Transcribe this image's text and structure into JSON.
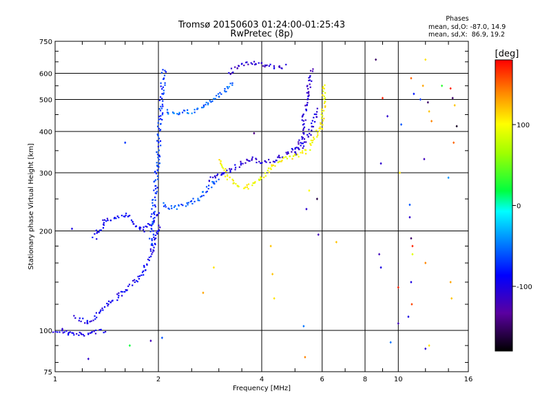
{
  "chart_data": {
    "type": "scatter",
    "title": "Tromsø 20150603 01:24:00-01:25:43",
    "subtitle": "RwPretec (8p)",
    "stats": {
      "heading": "Phases",
      "line1": "mean, sd,O: -87.0, 14.9",
      "line2": "mean, sd,X:  86.9, 19.2"
    },
    "xlabel": "Frequency [MHz]",
    "ylabel": "Stationary phase Virtual Height [km]",
    "x_scale": "log",
    "y_scale": "log",
    "xlim": [
      1,
      16
    ],
    "ylim": [
      75,
      750
    ],
    "x_ticks": [
      1,
      2,
      4,
      6,
      8,
      10,
      16
    ],
    "x_tick_labels": [
      "1",
      "2",
      "4",
      "6",
      "8",
      "10",
      "16"
    ],
    "y_ticks": [
      75,
      100,
      200,
      300,
      400,
      500,
      600,
      750
    ],
    "y_tick_labels": [
      "75",
      "100",
      "200",
      "300",
      "400",
      "500",
      "600",
      "750"
    ],
    "grid": true,
    "colorbar": {
      "label": "[deg]",
      "range": [
        -180,
        180
      ],
      "ticks": [
        100,
        0,
        -100
      ],
      "tick_labels": [
        "100",
        "0",
        "-100"
      ]
    },
    "traces": [
      {
        "x": [
          1.0,
          1.1,
          1.2,
          1.3,
          1.4
        ],
        "y": [
          100,
          98,
          97,
          99,
          100
        ],
        "phase": -100
      },
      {
        "x": [
          1.15,
          1.25,
          1.35,
          1.5,
          1.65,
          1.8,
          1.9,
          2.0
        ],
        "y": [
          110,
          105,
          115,
          125,
          135,
          150,
          170,
          210
        ],
        "phase": -95
      },
      {
        "x": [
          1.3,
          1.4,
          1.5,
          1.6,
          1.7,
          1.8,
          1.9,
          2.0
        ],
        "y": [
          190,
          215,
          220,
          225,
          210,
          200,
          210,
          230
        ],
        "phase": -90
      },
      {
        "x": [
          1.9,
          1.95,
          2.0,
          2.02,
          2.05,
          2.08
        ],
        "y": [
          180,
          260,
          340,
          420,
          520,
          620
        ],
        "phase": -70
      },
      {
        "x": [
          2.05,
          2.2,
          2.4,
          2.6,
          2.8,
          3.0
        ],
        "y": [
          240,
          235,
          240,
          250,
          270,
          290
        ],
        "phase": -60
      },
      {
        "x": [
          2.1,
          2.3,
          2.5,
          2.7,
          2.9,
          3.1,
          3.3
        ],
        "y": [
          460,
          455,
          460,
          475,
          500,
          530,
          570
        ],
        "phase": -55
      },
      {
        "x": [
          3.2,
          3.5,
          3.8,
          4.1,
          4.4,
          4.7
        ],
        "y": [
          600,
          640,
          645,
          635,
          625,
          630
        ],
        "phase": -110
      },
      {
        "x": [
          2.8,
          3.0,
          3.2,
          3.4,
          3.6,
          3.8,
          4.0,
          4.4,
          4.8,
          5.2,
          5.5,
          5.8
        ],
        "y": [
          285,
          295,
          305,
          315,
          325,
          330,
          320,
          330,
          345,
          360,
          390,
          470
        ],
        "phase": -105
      },
      {
        "x": [
          5.0,
          5.2,
          5.3,
          5.4,
          5.5,
          5.6
        ],
        "y": [
          340,
          380,
          430,
          500,
          560,
          620
        ],
        "phase": -110
      },
      {
        "x": [
          3.0,
          3.2,
          3.4,
          3.6,
          3.8,
          4.0,
          4.3,
          4.6,
          5.0,
          5.4,
          5.7,
          6.0,
          6.1
        ],
        "y": [
          330,
          290,
          275,
          270,
          280,
          290,
          315,
          330,
          335,
          350,
          380,
          420,
          560
        ],
        "phase": 100
      }
    ],
    "scattered_points": [
      {
        "x": 1.05,
        "y": 101,
        "phase": -110
      },
      {
        "x": 1.25,
        "y": 82,
        "phase": -110
      },
      {
        "x": 1.12,
        "y": 203,
        "phase": -100
      },
      {
        "x": 1.6,
        "y": 370,
        "phase": -70
      },
      {
        "x": 1.65,
        "y": 90,
        "phase": 20
      },
      {
        "x": 1.9,
        "y": 93,
        "phase": -120
      },
      {
        "x": 2.05,
        "y": 95,
        "phase": -60
      },
      {
        "x": 2.7,
        "y": 130,
        "phase": 130
      },
      {
        "x": 2.9,
        "y": 155,
        "phase": 110
      },
      {
        "x": 3.8,
        "y": 395,
        "phase": -140
      },
      {
        "x": 4.25,
        "y": 180,
        "phase": 120
      },
      {
        "x": 4.3,
        "y": 148,
        "phase": 120
      },
      {
        "x": 4.35,
        "y": 125,
        "phase": 110
      },
      {
        "x": 5.3,
        "y": 103,
        "phase": -50
      },
      {
        "x": 5.35,
        "y": 83,
        "phase": 140
      },
      {
        "x": 5.4,
        "y": 233,
        "phase": -110
      },
      {
        "x": 5.5,
        "y": 265,
        "phase": 100
      },
      {
        "x": 5.8,
        "y": 250,
        "phase": -160
      },
      {
        "x": 5.85,
        "y": 195,
        "phase": -120
      },
      {
        "x": 6.6,
        "y": 185,
        "phase": 120
      },
      {
        "x": 8.6,
        "y": 660,
        "phase": -150
      },
      {
        "x": 8.8,
        "y": 170,
        "phase": -120
      },
      {
        "x": 8.9,
        "y": 155,
        "phase": -100
      },
      {
        "x": 8.9,
        "y": 320,
        "phase": -110
      },
      {
        "x": 9.0,
        "y": 505,
        "phase": 170
      },
      {
        "x": 9.5,
        "y": 92,
        "phase": -50
      },
      {
        "x": 9.3,
        "y": 445,
        "phase": -110
      },
      {
        "x": 10.0,
        "y": 105,
        "phase": -120
      },
      {
        "x": 10.1,
        "y": 300,
        "phase": 110
      },
      {
        "x": 10.0,
        "y": 135,
        "phase": 170
      },
      {
        "x": 10.2,
        "y": 420,
        "phase": -60
      },
      {
        "x": 10.8,
        "y": 240,
        "phase": -60
      },
      {
        "x": 10.8,
        "y": 220,
        "phase": -110
      },
      {
        "x": 10.9,
        "y": 190,
        "phase": -150
      },
      {
        "x": 11.0,
        "y": 180,
        "phase": 170
      },
      {
        "x": 11.0,
        "y": 170,
        "phase": 90
      },
      {
        "x": 10.9,
        "y": 140,
        "phase": -100
      },
      {
        "x": 10.95,
        "y": 120,
        "phase": 160
      },
      {
        "x": 10.7,
        "y": 110,
        "phase": -100
      },
      {
        "x": 10.9,
        "y": 580,
        "phase": 150
      },
      {
        "x": 11.1,
        "y": 520,
        "phase": -80
      },
      {
        "x": 11.6,
        "y": 500,
        "phase": -70
      },
      {
        "x": 11.8,
        "y": 550,
        "phase": 130
      },
      {
        "x": 12.0,
        "y": 660,
        "phase": 110
      },
      {
        "x": 12.2,
        "y": 490,
        "phase": -150
      },
      {
        "x": 12.3,
        "y": 460,
        "phase": 120
      },
      {
        "x": 12.5,
        "y": 430,
        "phase": 140
      },
      {
        "x": 11.9,
        "y": 330,
        "phase": -120
      },
      {
        "x": 12.0,
        "y": 88,
        "phase": -110
      },
      {
        "x": 12.3,
        "y": 90,
        "phase": 110
      },
      {
        "x": 12.0,
        "y": 160,
        "phase": 140
      },
      {
        "x": 13.4,
        "y": 550,
        "phase": 30
      },
      {
        "x": 14.2,
        "y": 540,
        "phase": 170
      },
      {
        "x": 14.4,
        "y": 505,
        "phase": -150
      },
      {
        "x": 14.6,
        "y": 480,
        "phase": 120
      },
      {
        "x": 14.5,
        "y": 370,
        "phase": 150
      },
      {
        "x": 14.8,
        "y": 415,
        "phase": -170
      },
      {
        "x": 14.0,
        "y": 290,
        "phase": -40
      },
      {
        "x": 14.2,
        "y": 140,
        "phase": 130
      },
      {
        "x": 14.3,
        "y": 125,
        "phase": 120
      }
    ]
  }
}
